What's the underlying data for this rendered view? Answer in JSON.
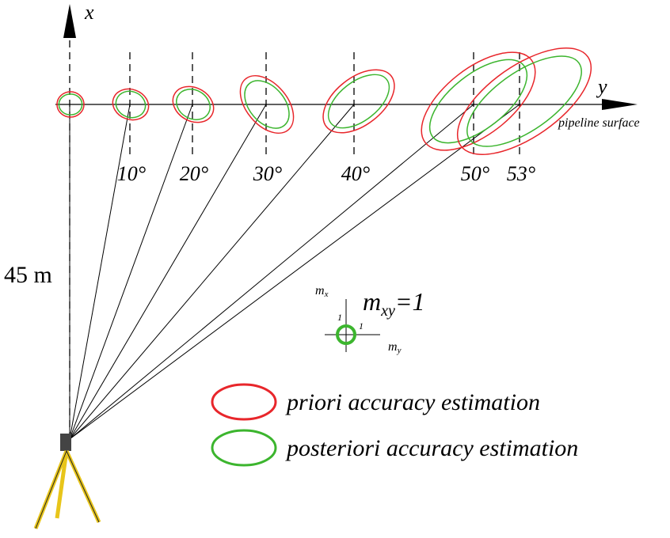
{
  "axes": {
    "x": "x",
    "y": "y",
    "surface": "pipeline surface"
  },
  "angles": [
    "10°",
    "20°",
    "30°",
    "40°",
    "50°",
    "53°"
  ],
  "distance": "45 m",
  "scale": {
    "mx": {
      "base": "m",
      "sub": "x"
    },
    "mxy": {
      "base": "m",
      "sub": "xy",
      "eq": "=1"
    },
    "one_x": "1",
    "one_y": "1",
    "my": {
      "base": "m",
      "sub": "y"
    }
  },
  "legend": [
    "priori accuracy estimation",
    "posteriori accuracy estimation"
  ]
}
